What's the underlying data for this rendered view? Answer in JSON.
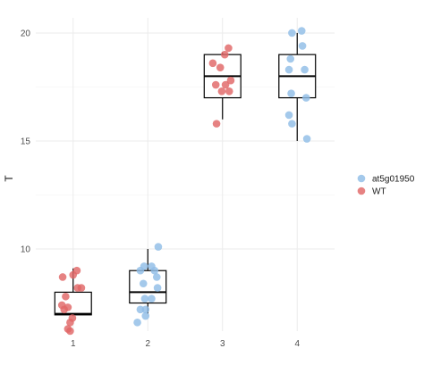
{
  "chart_data": {
    "type": "box-jitter",
    "ylabel": "T",
    "x_ticks": [
      "1",
      "2",
      "3",
      "4"
    ],
    "y_ticks": [
      10,
      15,
      20
    ],
    "ylim": [
      6.2,
      20.7
    ],
    "grid": true,
    "legend": {
      "placement": "right",
      "entries": [
        {
          "name": "at5g01950",
          "color": "#90bde6"
        },
        {
          "name": "WT",
          "color": "#e06666"
        }
      ]
    },
    "boxes": [
      {
        "x": 1,
        "min": 6.9,
        "q1": 6.95,
        "median": 7.0,
        "q3": 8.0,
        "max": 9.1
      },
      {
        "x": 2,
        "min": 7.0,
        "q1": 7.5,
        "median": 8.0,
        "q3": 9.0,
        "max": 10.0
      },
      {
        "x": 3,
        "min": 16.0,
        "q1": 17.0,
        "median": 18.0,
        "q3": 19.0,
        "max": 19.1
      },
      {
        "x": 4,
        "min": 15.0,
        "q1": 17.0,
        "median": 18.0,
        "q3": 19.0,
        "max": 20.0
      }
    ],
    "series": [
      {
        "name": "WT",
        "points": [
          {
            "x": 0.86,
            "y": 8.7
          },
          {
            "x": 1.05,
            "y": 9.0
          },
          {
            "x": 1.0,
            "y": 8.8
          },
          {
            "x": 1.11,
            "y": 8.2
          },
          {
            "x": 1.06,
            "y": 8.2
          },
          {
            "x": 0.9,
            "y": 7.8
          },
          {
            "x": 0.85,
            "y": 7.4
          },
          {
            "x": 0.93,
            "y": 7.3
          },
          {
            "x": 0.88,
            "y": 7.2
          },
          {
            "x": 0.99,
            "y": 6.8
          },
          {
            "x": 0.96,
            "y": 6.6
          },
          {
            "x": 0.93,
            "y": 6.3
          },
          {
            "x": 0.96,
            "y": 6.2
          },
          {
            "x": 2.87,
            "y": 18.6
          },
          {
            "x": 3.03,
            "y": 19.0
          },
          {
            "x": 3.08,
            "y": 19.3
          },
          {
            "x": 2.97,
            "y": 18.4
          },
          {
            "x": 2.91,
            "y": 17.6
          },
          {
            "x": 3.04,
            "y": 17.6
          },
          {
            "x": 3.11,
            "y": 17.8
          },
          {
            "x": 3.09,
            "y": 17.3
          },
          {
            "x": 2.99,
            "y": 17.3
          },
          {
            "x": 2.92,
            "y": 15.8
          }
        ]
      },
      {
        "name": "at5g01950",
        "points": [
          {
            "x": 2.14,
            "y": 10.1
          },
          {
            "x": 1.95,
            "y": 9.2
          },
          {
            "x": 2.05,
            "y": 9.2
          },
          {
            "x": 1.9,
            "y": 9.0
          },
          {
            "x": 2.09,
            "y": 9.0
          },
          {
            "x": 2.12,
            "y": 8.7
          },
          {
            "x": 1.94,
            "y": 8.4
          },
          {
            "x": 2.13,
            "y": 8.2
          },
          {
            "x": 1.96,
            "y": 7.7
          },
          {
            "x": 2.05,
            "y": 7.7
          },
          {
            "x": 1.9,
            "y": 7.2
          },
          {
            "x": 1.97,
            "y": 7.2
          },
          {
            "x": 1.86,
            "y": 6.6
          },
          {
            "x": 1.97,
            "y": 6.9
          },
          {
            "x": 3.93,
            "y": 20.0
          },
          {
            "x": 4.06,
            "y": 20.1
          },
          {
            "x": 4.07,
            "y": 19.4
          },
          {
            "x": 3.91,
            "y": 18.8
          },
          {
            "x": 3.89,
            "y": 18.3
          },
          {
            "x": 4.1,
            "y": 18.3
          },
          {
            "x": 3.92,
            "y": 17.2
          },
          {
            "x": 4.12,
            "y": 17.0
          },
          {
            "x": 3.89,
            "y": 16.2
          },
          {
            "x": 3.93,
            "y": 15.8
          },
          {
            "x": 4.13,
            "y": 15.1
          }
        ]
      }
    ]
  }
}
